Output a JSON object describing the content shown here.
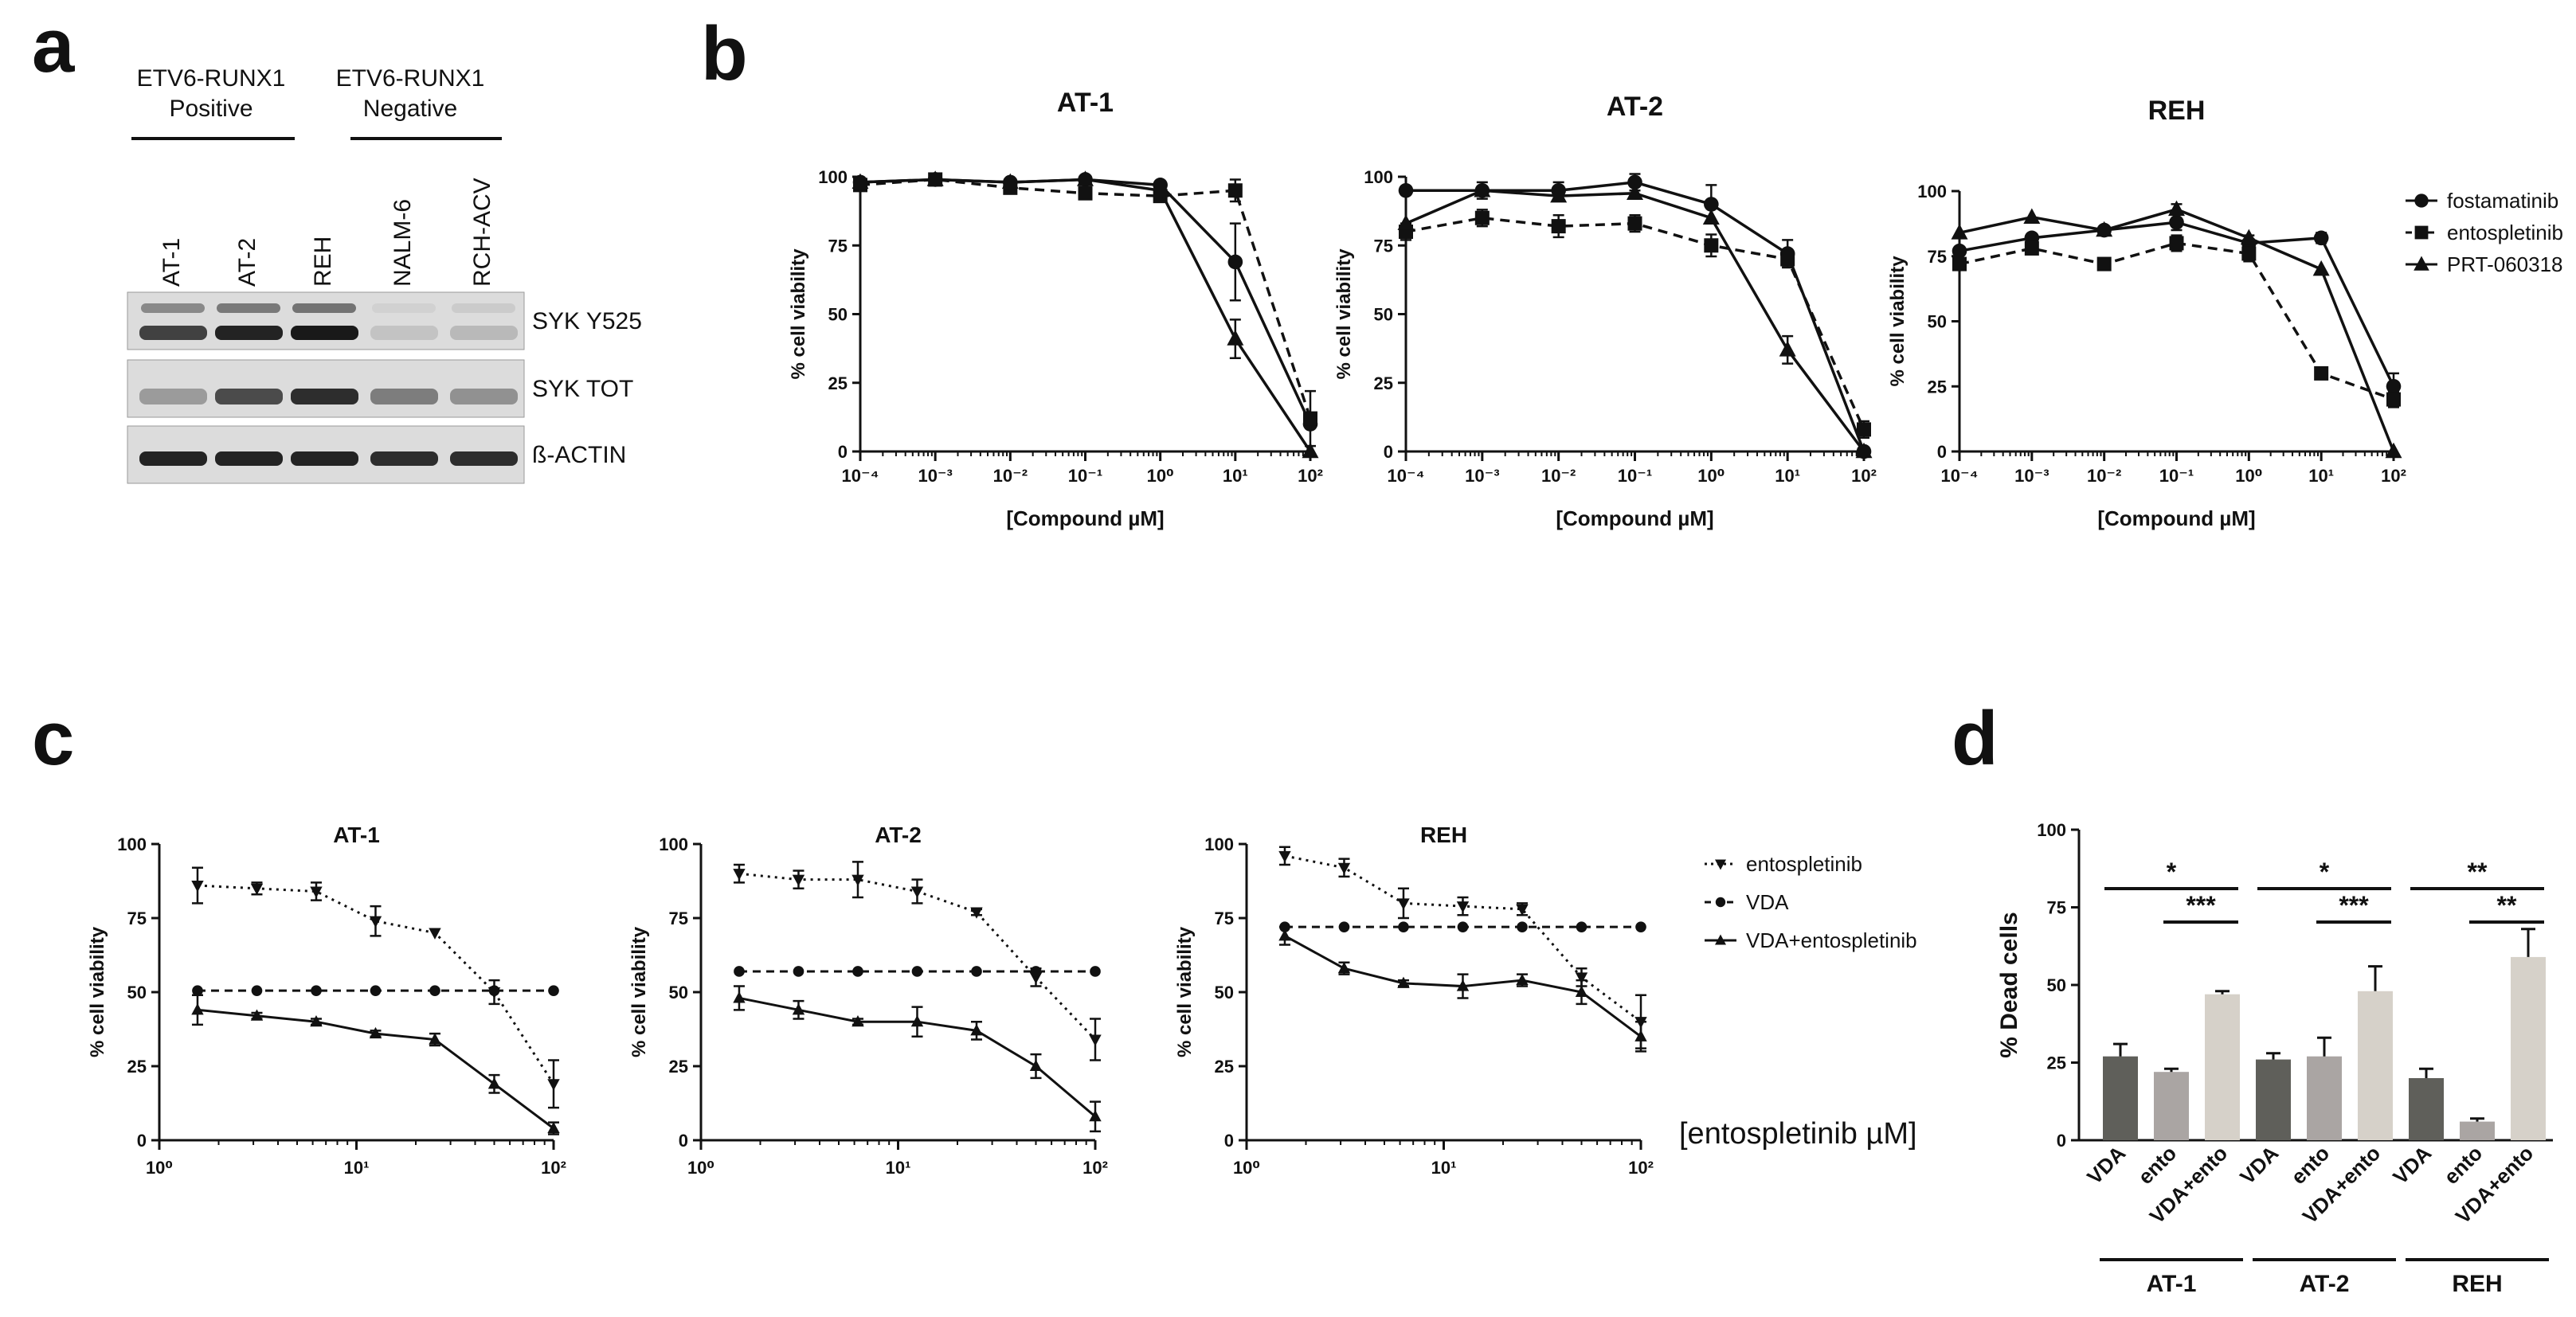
{
  "panels": {
    "a": "a",
    "b": "b",
    "c": "c",
    "d": "d"
  },
  "western_blot": {
    "group_labels": [
      {
        "line1": "ETV6-RUNX1",
        "line2": "Positive"
      },
      {
        "line1": "ETV6-RUNX1",
        "line2": "Negative"
      }
    ],
    "lanes": [
      "AT-1",
      "AT-2",
      "REH",
      "NALM-6",
      "RCH-ACV"
    ],
    "rows": [
      {
        "label": "SYK Y525",
        "intensity": [
          0.8,
          0.95,
          1.0,
          0.15,
          0.2
        ]
      },
      {
        "label": "SYK TOT",
        "intensity": [
          0.35,
          0.75,
          0.9,
          0.5,
          0.4
        ]
      },
      {
        "label": "ß-ACTIN",
        "intensity": [
          0.95,
          0.95,
          0.95,
          0.9,
          0.9
        ]
      }
    ]
  },
  "colors": {
    "bar_dark": "#5f5f5a",
    "bar_mid": "#aaa5a3",
    "bar_light": "#d6d1c9",
    "line": "#111111"
  },
  "chart_data": [
    {
      "id": "b1",
      "type": "line",
      "title": "AT-1",
      "xlabel": "[Compound  µM]",
      "ylabel": "% cell viability",
      "xscale": "log",
      "xlim": [
        -4,
        2
      ],
      "ylim": [
        0,
        100
      ],
      "xticks": [
        -4,
        -3,
        -2,
        -1,
        0,
        1,
        2
      ],
      "yticks": [
        0,
        25,
        50,
        75,
        100
      ],
      "series": [
        {
          "name": "fostamatinib",
          "style": "solid",
          "marker": "circle",
          "x": [
            -4,
            -3,
            -2,
            -1,
            0,
            1,
            2
          ],
          "y": [
            98,
            99,
            98,
            99,
            97,
            69,
            10
          ],
          "err": [
            0,
            0,
            0,
            0,
            0,
            14,
            0
          ]
        },
        {
          "name": "entospletinib",
          "style": "dashed",
          "marker": "square",
          "x": [
            -4,
            -3,
            -2,
            -1,
            0,
            1,
            2
          ],
          "y": [
            97,
            99,
            96,
            94,
            93,
            95,
            12
          ],
          "err": [
            0,
            0,
            0,
            0,
            0,
            4,
            10
          ]
        },
        {
          "name": "PRT-060318",
          "style": "solid",
          "marker": "triangle",
          "x": [
            -4,
            -3,
            -2,
            -1,
            0,
            1,
            2
          ],
          "y": [
            98,
            99,
            98,
            99,
            95,
            41,
            0
          ],
          "err": [
            0,
            0,
            0,
            0,
            0,
            7,
            0
          ]
        }
      ]
    },
    {
      "id": "b2",
      "type": "line",
      "title": "AT-2",
      "xlabel": "[Compound  µM]",
      "ylabel": "% cell viability",
      "xscale": "log",
      "xlim": [
        -4,
        2
      ],
      "ylim": [
        0,
        100
      ],
      "xticks": [
        -4,
        -3,
        -2,
        -1,
        0,
        1,
        2
      ],
      "yticks": [
        0,
        25,
        50,
        75,
        100
      ],
      "series": [
        {
          "name": "fostamatinib",
          "style": "solid",
          "marker": "circle",
          "x": [
            -4,
            -3,
            -2,
            -1,
            0,
            1,
            2
          ],
          "y": [
            95,
            95,
            95,
            98,
            90,
            72,
            0
          ],
          "err": [
            0,
            3,
            3,
            3,
            7,
            5,
            0
          ]
        },
        {
          "name": "entospletinib",
          "style": "dashed",
          "marker": "square",
          "x": [
            -4,
            -3,
            -2,
            -1,
            0,
            1,
            2
          ],
          "y": [
            80,
            85,
            82,
            83,
            75,
            70,
            8
          ],
          "err": [
            3,
            3,
            4,
            3,
            4,
            3,
            3
          ]
        },
        {
          "name": "PRT-060318",
          "style": "solid",
          "marker": "triangle",
          "x": [
            -4,
            -3,
            -2,
            -1,
            0,
            1,
            2
          ],
          "y": [
            83,
            95,
            93,
            94,
            85,
            37,
            0
          ],
          "err": [
            0,
            0,
            0,
            0,
            0,
            5,
            0
          ]
        }
      ]
    },
    {
      "id": "b3",
      "type": "line",
      "title": "REH",
      "xlabel": "[Compound  µM]",
      "ylabel": "% cell viability",
      "xscale": "log",
      "xlim": [
        -4,
        2
      ],
      "ylim": [
        0,
        100
      ],
      "xticks": [
        -4,
        -3,
        -2,
        -1,
        0,
        1,
        2
      ],
      "yticks": [
        0,
        25,
        50,
        75,
        100
      ],
      "series": [
        {
          "name": "fostamatinib",
          "style": "solid",
          "marker": "circle",
          "x": [
            -4,
            -3,
            -2,
            -1,
            0,
            1,
            2
          ],
          "y": [
            77,
            82,
            85,
            88,
            80,
            82,
            25
          ],
          "err": [
            0,
            0,
            0,
            3,
            3,
            2,
            5
          ]
        },
        {
          "name": "entospletinib",
          "style": "dashed",
          "marker": "square",
          "x": [
            -4,
            -3,
            -2,
            -1,
            0,
            1,
            2
          ],
          "y": [
            72,
            78,
            72,
            80,
            76,
            30,
            20
          ],
          "err": [
            2,
            2,
            2,
            3,
            3,
            2,
            3
          ]
        },
        {
          "name": "PRT-060318",
          "style": "solid",
          "marker": "triangle",
          "x": [
            -4,
            -3,
            -2,
            -1,
            0,
            1,
            2
          ],
          "y": [
            84,
            90,
            85,
            93,
            82,
            70,
            0
          ],
          "err": [
            0,
            0,
            0,
            2,
            0,
            0,
            0
          ]
        }
      ],
      "legend": [
        "fostamatinib",
        "entospletinib",
        "PRT-060318"
      ]
    },
    {
      "id": "c1",
      "type": "line",
      "title": "AT-1",
      "xlabel": "",
      "ylabel": "% cell viability",
      "xscale": "log",
      "xlim": [
        0,
        2
      ],
      "ylim": [
        0,
        100
      ],
      "xticks": [
        0,
        1,
        2
      ],
      "yticks": [
        0,
        25,
        50,
        75,
        100
      ],
      "x": [
        1.5625,
        3.125,
        6.25,
        12.5,
        25,
        50,
        100
      ],
      "series": [
        {
          "name": "entospletinib",
          "style": "dotted",
          "marker": "triangle-down",
          "y": [
            86,
            85,
            84,
            74,
            70,
            50,
            19
          ],
          "err": [
            6,
            2,
            3,
            5,
            0,
            4,
            8
          ]
        },
        {
          "name": "VDA",
          "style": "dashed",
          "marker": "circle",
          "y": [
            50.5,
            50.5,
            50.5,
            50.5,
            50.5,
            50.5,
            50.5
          ],
          "err": [
            0,
            0,
            0,
            0,
            0,
            0,
            0
          ]
        },
        {
          "name": "VDA+entospletinib",
          "style": "solid",
          "marker": "triangle",
          "y": [
            44,
            42,
            40,
            36,
            34,
            19,
            4
          ],
          "err": [
            5,
            1,
            1,
            1,
            2,
            3,
            2
          ]
        }
      ]
    },
    {
      "id": "c2",
      "type": "line",
      "title": "AT-2",
      "xlabel": "",
      "ylabel": "% cell viability",
      "xscale": "log",
      "xlim": [
        0,
        2
      ],
      "ylim": [
        0,
        100
      ],
      "xticks": [
        0,
        1,
        2
      ],
      "yticks": [
        0,
        25,
        50,
        75,
        100
      ],
      "x": [
        1.5625,
        3.125,
        6.25,
        12.5,
        25,
        50,
        100
      ],
      "series": [
        {
          "name": "entospletinib",
          "style": "dotted",
          "marker": "triangle-down",
          "y": [
            90,
            88,
            88,
            84,
            77,
            55,
            34
          ],
          "err": [
            3,
            3,
            6,
            4,
            1,
            3,
            7
          ]
        },
        {
          "name": "VDA",
          "style": "dashed",
          "marker": "circle",
          "y": [
            57,
            57,
            57,
            57,
            57,
            57,
            57
          ],
          "err": [
            0,
            0,
            0,
            0,
            0,
            0,
            0
          ]
        },
        {
          "name": "VDA+entospletinib",
          "style": "solid",
          "marker": "triangle",
          "y": [
            48,
            44,
            40,
            40,
            37,
            25,
            8
          ],
          "err": [
            4,
            3,
            1,
            5,
            3,
            4,
            5
          ]
        }
      ]
    },
    {
      "id": "c3",
      "type": "line",
      "title": "REH",
      "xlabel": "[entospletinib µM]",
      "ylabel": "% cell viability",
      "xscale": "log",
      "xlim": [
        0,
        2
      ],
      "ylim": [
        0,
        100
      ],
      "xticks": [
        0,
        1,
        2
      ],
      "yticks": [
        0,
        25,
        50,
        75,
        100
      ],
      "x": [
        1.5625,
        3.125,
        6.25,
        12.5,
        25,
        50,
        100
      ],
      "series": [
        {
          "name": "entospletinib",
          "style": "dotted",
          "marker": "triangle-down",
          "y": [
            96,
            92,
            80,
            79,
            78,
            55,
            40
          ],
          "err": [
            3,
            3,
            5,
            3,
            2,
            3,
            9
          ]
        },
        {
          "name": "VDA",
          "style": "dashed",
          "marker": "circle",
          "y": [
            72,
            72,
            72,
            72,
            72,
            72,
            72
          ],
          "err": [
            0,
            0,
            0,
            0,
            0,
            0,
            0
          ]
        },
        {
          "name": "VDA+entospletinib",
          "style": "solid",
          "marker": "triangle",
          "y": [
            69,
            58,
            53,
            52,
            54,
            50,
            35
          ],
          "err": [
            3,
            2,
            1,
            4,
            2,
            4,
            5
          ]
        }
      ],
      "legend": [
        "entospletinib",
        "VDA",
        "VDA+entospletinib"
      ]
    },
    {
      "id": "d",
      "type": "bar",
      "title": "",
      "ylabel": "% Dead cells",
      "ylim": [
        0,
        100
      ],
      "yticks": [
        0,
        25,
        50,
        75,
        100
      ],
      "groups": [
        "AT-1",
        "AT-2",
        "REH"
      ],
      "categories": [
        "VDA",
        "ento",
        "VDA+ento"
      ],
      "values": [
        [
          27,
          22,
          47
        ],
        [
          26,
          27,
          48
        ],
        [
          20,
          6,
          59
        ]
      ],
      "errors": [
        [
          4,
          1,
          1
        ],
        [
          2,
          6,
          8
        ],
        [
          3,
          1,
          9
        ]
      ],
      "significance": [
        [
          "*",
          "***"
        ],
        [
          "*",
          "***"
        ],
        [
          "**",
          "**"
        ]
      ]
    }
  ]
}
